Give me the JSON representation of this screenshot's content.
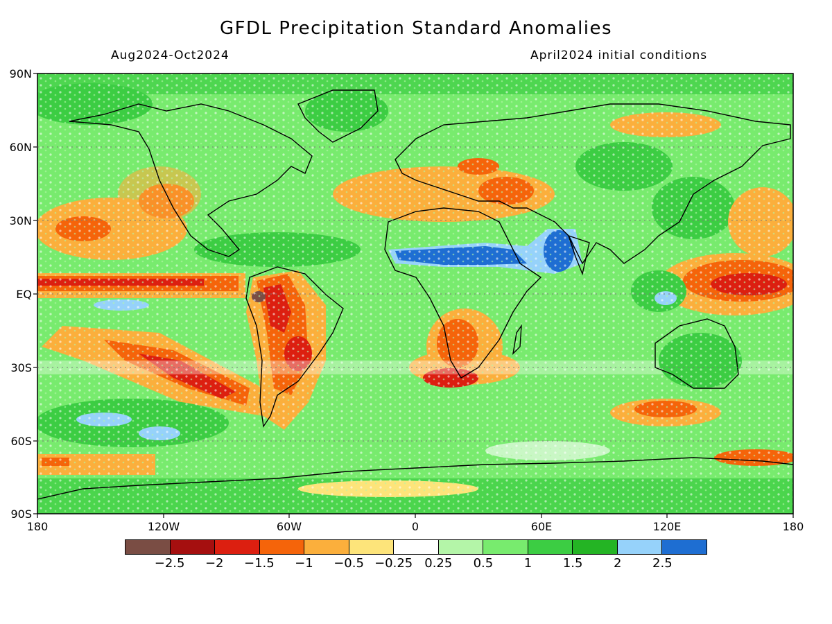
{
  "header": {
    "title": "GFDL Precipitation Standard Anomalies",
    "period": "Aug2024-Oct2024",
    "init": "April2024 initial conditions"
  },
  "axes": {
    "lat_labels": [
      "90N",
      "60N",
      "30N",
      "EQ",
      "30S",
      "60S",
      "90S"
    ],
    "lon_labels": [
      "180",
      "120W",
      "60W",
      "0",
      "60E",
      "120E",
      "180"
    ]
  },
  "colorbar": {
    "colors": [
      "#7a4d44",
      "#a50f0f",
      "#dc1f10",
      "#f5640a",
      "#fbaf3c",
      "#fde47a",
      "#ffffff",
      "#b4f5a8",
      "#78eb6e",
      "#3ccd43",
      "#24b424",
      "#96d2fa",
      "#1e6ed2"
    ],
    "labels": [
      "-2.5",
      "-2",
      "-1.5",
      "-1",
      "-0.5",
      "-0.25",
      "0.25",
      "0.5",
      "1",
      "1.5",
      "2",
      "2.5"
    ]
  }
}
